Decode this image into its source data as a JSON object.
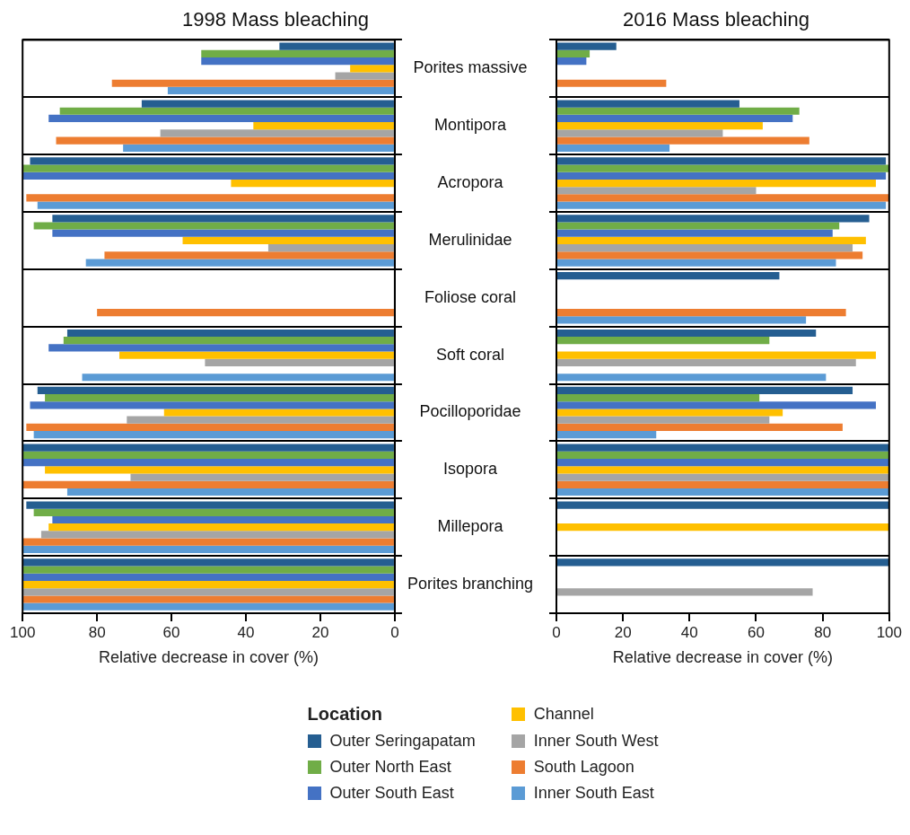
{
  "chart_data": [
    {
      "type": "bar",
      "orientation": "horizontal",
      "title": "1998 Mass bleaching",
      "xlabel": "Relative decrease in cover (%)",
      "categories": [
        "Porites massive",
        "Montipora",
        "Acropora",
        "Merulinidae",
        "Foliose coral",
        "Soft coral",
        "Pocilloporidae",
        "Isopora",
        "Millepora",
        "Porites branching"
      ],
      "xlim": [
        100,
        0
      ],
      "xticks": [
        100,
        80,
        60,
        40,
        20,
        0
      ],
      "grid": "y",
      "legend": "bottom",
      "legend_title": "Location",
      "series": [
        {
          "name": "Outer Seringapatam",
          "color": "#255e91",
          "values": [
            31,
            68,
            98,
            92,
            null,
            88,
            96,
            100,
            99,
            100
          ]
        },
        {
          "name": "Outer North East",
          "color": "#70ad47",
          "values": [
            52,
            90,
            100,
            97,
            null,
            89,
            94,
            100,
            97,
            100
          ]
        },
        {
          "name": "Outer South East",
          "color": "#4472c4",
          "values": [
            52,
            93,
            100,
            92,
            null,
            93,
            98,
            100,
            92,
            100
          ]
        },
        {
          "name": "Channel",
          "color": "#ffc000",
          "values": [
            12,
            38,
            44,
            57,
            null,
            74,
            62,
            94,
            93,
            100
          ]
        },
        {
          "name": "Inner South West",
          "color": "#a5a5a5",
          "values": [
            16,
            63,
            null,
            34,
            null,
            51,
            72,
            71,
            95,
            100
          ]
        },
        {
          "name": "South Lagoon",
          "color": "#ed7d31",
          "values": [
            76,
            91,
            99,
            78,
            80,
            null,
            99,
            100,
            100,
            100
          ]
        },
        {
          "name": "Inner South East",
          "color": "#5b9bd5",
          "values": [
            61,
            73,
            96,
            83,
            null,
            84,
            97,
            88,
            100,
            100
          ]
        }
      ]
    },
    {
      "type": "bar",
      "orientation": "horizontal",
      "title": "2016 Mass bleaching",
      "xlabel": "Relative decrease in cover (%)",
      "categories": [
        null,
        null,
        null,
        null,
        null,
        null,
        null,
        null,
        null,
        null
      ],
      "xlim": [
        0,
        100
      ],
      "xticks": [
        0,
        20,
        40,
        60,
        80,
        100
      ],
      "grid": "y",
      "series": [
        {
          "color": "#255e91",
          "values": [
            18,
            55,
            99,
            94,
            67,
            78,
            89,
            100,
            100,
            100
          ]
        },
        {
          "color": "#70ad47",
          "values": [
            10,
            73,
            100,
            85,
            null,
            64,
            61,
            100,
            null,
            null
          ]
        },
        {
          "color": "#4472c4",
          "values": [
            9,
            71,
            99,
            83,
            null,
            null,
            96,
            100,
            null,
            null
          ]
        },
        {
          "color": "#ffc000",
          "values": [
            null,
            62,
            96,
            93,
            null,
            96,
            68,
            100,
            100,
            null
          ]
        },
        {
          "color": "#a5a5a5",
          "values": [
            null,
            50,
            60,
            89,
            null,
            90,
            64,
            100,
            null,
            77
          ]
        },
        {
          "color": "#ed7d31",
          "values": [
            33,
            76,
            100,
            92,
            87,
            null,
            86,
            100,
            null,
            null
          ]
        },
        {
          "color": "#5b9bd5",
          "values": [
            null,
            34,
            99,
            84,
            75,
            81,
            30,
            100,
            null,
            null
          ]
        }
      ]
    }
  ]
}
